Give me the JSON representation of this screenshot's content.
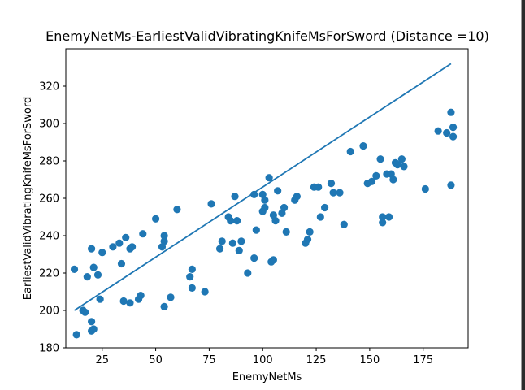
{
  "colors": {
    "marker": "#1f77b4",
    "line": "#1f77b4",
    "axis": "#000000",
    "background": "#ffffff"
  },
  "chart_data": {
    "type": "scatter",
    "title": "EnemyNetMs-EarliestValidVibratingKnifeMsForSword  (Distance =10)",
    "xlabel": "EnemyNetMs",
    "ylabel": "EarliestValidVibratingKnifeMsForSword",
    "xlim": [
      8,
      196
    ],
    "ylim": [
      180,
      340
    ],
    "xticks": [
      25,
      50,
      75,
      100,
      125,
      150,
      175
    ],
    "yticks": [
      180,
      200,
      220,
      240,
      260,
      280,
      300,
      320
    ],
    "grid": false,
    "legend": "none",
    "series": [
      {
        "type": "scatter",
        "points": [
          [
            12,
            222
          ],
          [
            13,
            187
          ],
          [
            16,
            200
          ],
          [
            17,
            199
          ],
          [
            18,
            218
          ],
          [
            20,
            233
          ],
          [
            20,
            189
          ],
          [
            20,
            194
          ],
          [
            21,
            190
          ],
          [
            21,
            223
          ],
          [
            23,
            219
          ],
          [
            24,
            206
          ],
          [
            25,
            231
          ],
          [
            30,
            234
          ],
          [
            33,
            236
          ],
          [
            34,
            225
          ],
          [
            35,
            205
          ],
          [
            36,
            239
          ],
          [
            38,
            204
          ],
          [
            38,
            233
          ],
          [
            39,
            234
          ],
          [
            42,
            206
          ],
          [
            43,
            208
          ],
          [
            44,
            241
          ],
          [
            50,
            249
          ],
          [
            53,
            234
          ],
          [
            54,
            237
          ],
          [
            54,
            240
          ],
          [
            54,
            202
          ],
          [
            57,
            207
          ],
          [
            60,
            254
          ],
          [
            66,
            218
          ],
          [
            67,
            222
          ],
          [
            67,
            212
          ],
          [
            73,
            210
          ],
          [
            76,
            257
          ],
          [
            80,
            233
          ],
          [
            81,
            237
          ],
          [
            84,
            250
          ],
          [
            85,
            248
          ],
          [
            86,
            236
          ],
          [
            87,
            261
          ],
          [
            88,
            248
          ],
          [
            89,
            232
          ],
          [
            90,
            237
          ],
          [
            93,
            220
          ],
          [
            96,
            262
          ],
          [
            96,
            228
          ],
          [
            97,
            243
          ],
          [
            100,
            262
          ],
          [
            100,
            253
          ],
          [
            101,
            259
          ],
          [
            101,
            255
          ],
          [
            103,
            271
          ],
          [
            104,
            226
          ],
          [
            105,
            227
          ],
          [
            105,
            251
          ],
          [
            106,
            248
          ],
          [
            107,
            264
          ],
          [
            109,
            252
          ],
          [
            110,
            255
          ],
          [
            111,
            242
          ],
          [
            115,
            259
          ],
          [
            116,
            261
          ],
          [
            120,
            236
          ],
          [
            121,
            238
          ],
          [
            122,
            242
          ],
          [
            124,
            266
          ],
          [
            126,
            266
          ],
          [
            127,
            250
          ],
          [
            129,
            255
          ],
          [
            132,
            268
          ],
          [
            133,
            263
          ],
          [
            136,
            263
          ],
          [
            138,
            246
          ],
          [
            141,
            285
          ],
          [
            147,
            288
          ],
          [
            149,
            268
          ],
          [
            151,
            269
          ],
          [
            153,
            272
          ],
          [
            155,
            281
          ],
          [
            156,
            250
          ],
          [
            156,
            247
          ],
          [
            158,
            273
          ],
          [
            159,
            250
          ],
          [
            160,
            273
          ],
          [
            161,
            270
          ],
          [
            162,
            279
          ],
          [
            163,
            278
          ],
          [
            165,
            281
          ],
          [
            166,
            277
          ],
          [
            176,
            265
          ],
          [
            182,
            296
          ],
          [
            186,
            295
          ],
          [
            188,
            306
          ],
          [
            188,
            267
          ],
          [
            189,
            298
          ],
          [
            189,
            293
          ]
        ]
      },
      {
        "type": "line",
        "points": [
          [
            12,
            200
          ],
          [
            188,
            332
          ]
        ]
      }
    ]
  }
}
